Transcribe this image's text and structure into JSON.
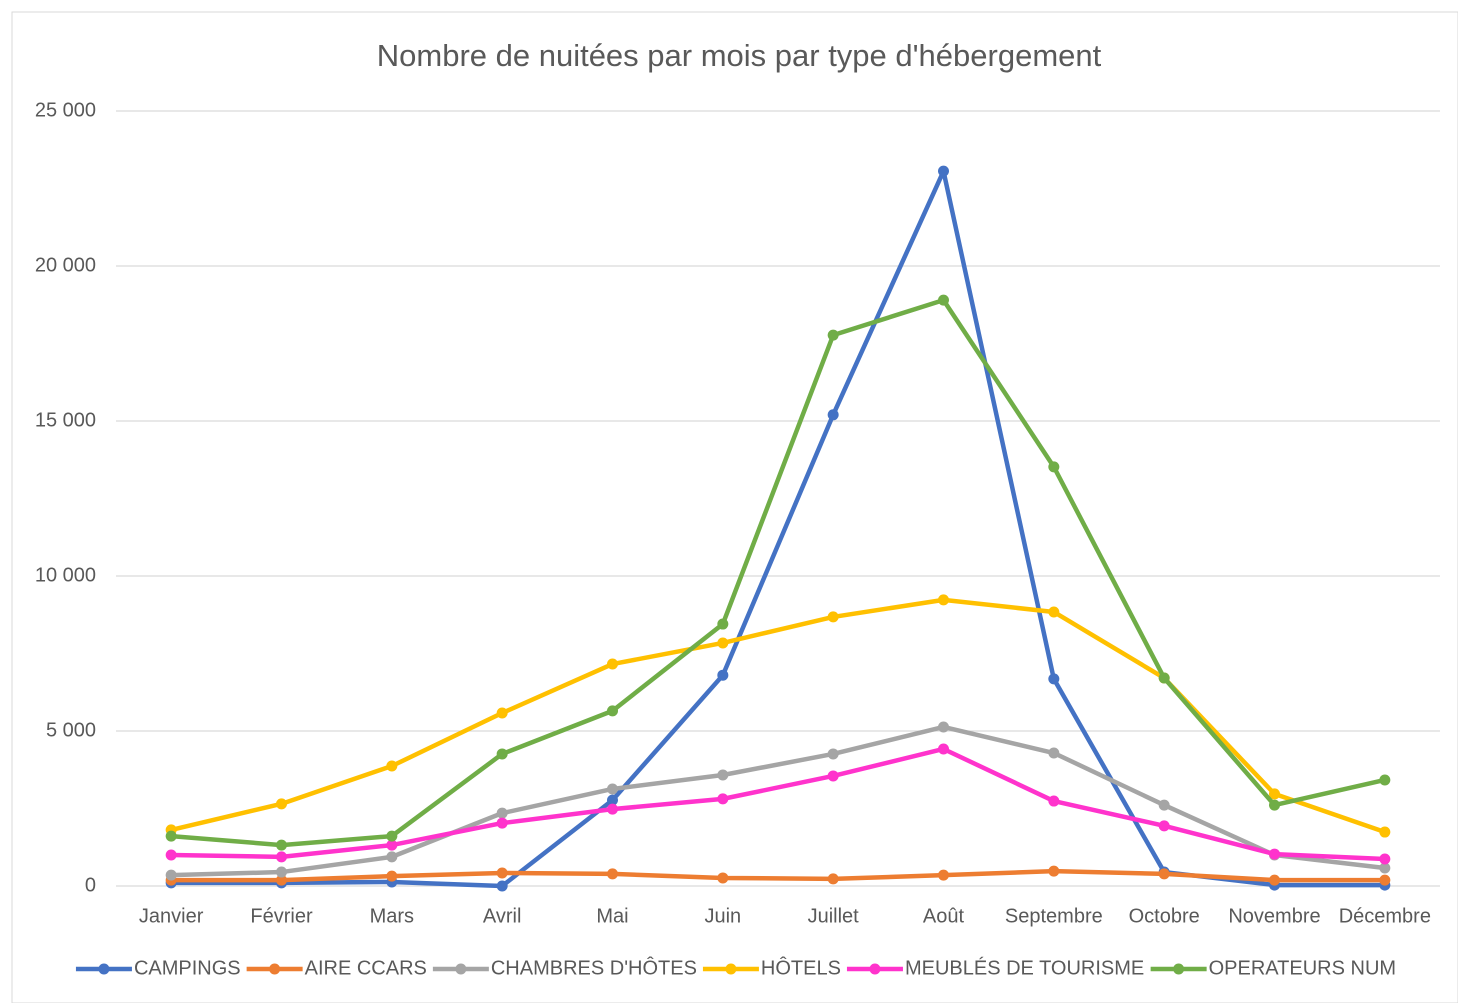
{
  "chart_data": {
    "type": "line",
    "title": "Nombre de nuitées par mois par type d'hébergement",
    "categories": [
      "Janvier",
      "Février",
      "Mars",
      "Avril",
      "Mai",
      "Juin",
      "Juillet",
      "Août",
      "Septembre",
      "Octobre",
      "Novembre",
      "Décembre"
    ],
    "series": [
      {
        "name": "CAMPINGS",
        "color": "#4472c4",
        "values": [
          100,
          100,
          130,
          0,
          2770,
          6800,
          15200,
          23060,
          6680,
          450,
          30,
          30
        ]
      },
      {
        "name": "AIRE CCARS",
        "color": "#ed7d31",
        "values": [
          190,
          190,
          320,
          420,
          390,
          260,
          230,
          350,
          480,
          390,
          190,
          190
        ]
      },
      {
        "name": "CHAMBRES D'HÔTES",
        "color": "#a5a5a5",
        "values": [
          350,
          450,
          940,
          2350,
          3130,
          3580,
          4260,
          5130,
          4290,
          2610,
          1000,
          580
        ]
      },
      {
        "name": "HÔTELS",
        "color": "#ffc000",
        "values": [
          1810,
          2650,
          3870,
          5580,
          7160,
          7840,
          8680,
          9230,
          8840,
          6710,
          2970,
          1740
        ]
      },
      {
        "name": "MEUBLÉS DE TOURISME",
        "color": "#ff33cc",
        "values": [
          1000,
          940,
          1320,
          2030,
          2480,
          2810,
          3550,
          4420,
          2740,
          1940,
          1030,
          870
        ]
      },
      {
        "name": "OPERATEURS NUM",
        "color": "#70ad47",
        "values": [
          1610,
          1320,
          1610,
          4260,
          5650,
          8450,
          17770,
          18900,
          13520,
          6710,
          2610,
          3420
        ]
      }
    ],
    "ylim": [
      0,
      25000
    ],
    "yticks": [
      0,
      {
        "value": 5000,
        "label": "5 000"
      },
      {
        "value": 10000,
        "label": "10 000"
      },
      {
        "value": 15000,
        "label": "15 000"
      },
      {
        "value": 20000,
        "label": "20 000"
      },
      {
        "value": 25000,
        "label": "25 000"
      }
    ],
    "grid": true,
    "legend": "bottom"
  }
}
